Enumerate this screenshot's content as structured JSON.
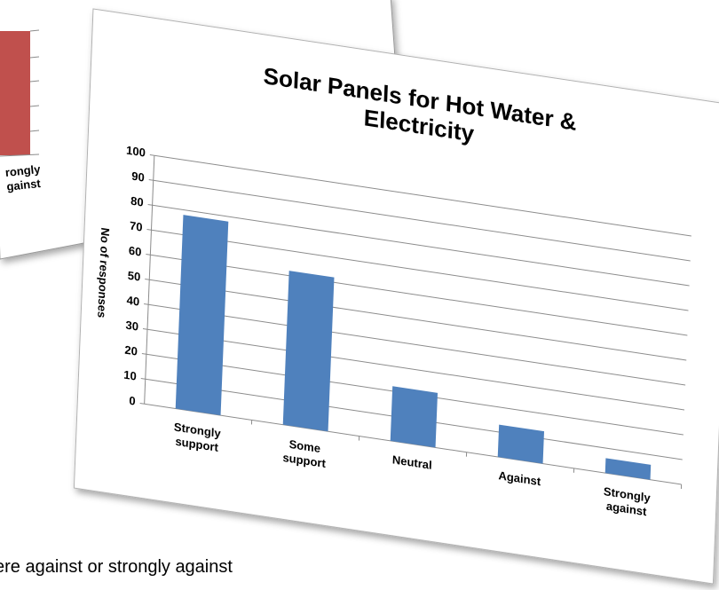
{
  "chart_data": {
    "type": "bar",
    "title": "Solar Panels for Hot Water &\nElectricity",
    "y_label": "No of responses",
    "categories": [
      "Strongly\nsupport",
      "Some\nsupport",
      "Neutral",
      "Against",
      "Strongly\nagainst"
    ],
    "values": [
      78,
      62,
      22,
      13,
      6
    ],
    "color": "#4f81bd",
    "ylim": [
      0,
      100
    ],
    "yticks": [
      0,
      10,
      20,
      30,
      40,
      50,
      60,
      70,
      80,
      90,
      100
    ],
    "grid": true
  },
  "background_chart_label": "rongly\ngainst",
  "caption": "ere against or strongly against"
}
